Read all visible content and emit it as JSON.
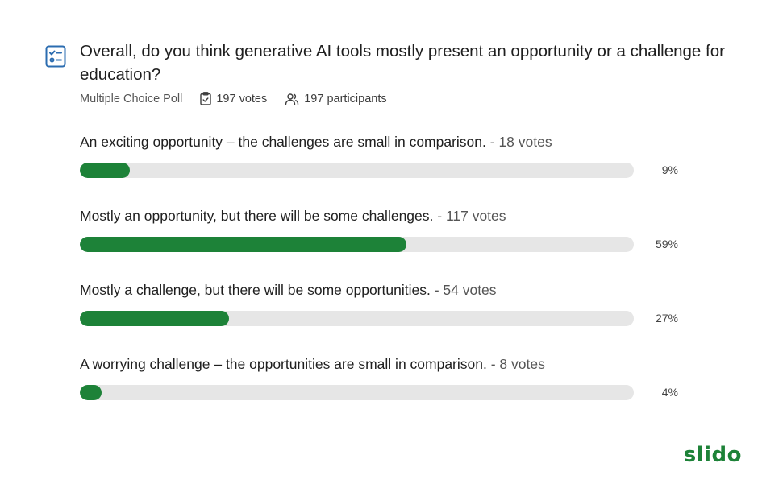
{
  "poll": {
    "question": "Overall, do you think generative AI tools mostly present an opportunity or a challenge for education?",
    "type_label": "Multiple Choice Poll",
    "votes_label": "197 votes",
    "participants_label": "197 participants"
  },
  "options": [
    {
      "label": "An exciting opportunity – the challenges are small in comparison.",
      "votes_text": " - 18 votes",
      "votes": 18,
      "percent_text": "9%",
      "percent": 9
    },
    {
      "label": "Mostly an opportunity, but there will be some challenges.",
      "votes_text": " - 117 votes",
      "votes": 117,
      "percent_text": "59%",
      "percent": 59
    },
    {
      "label": "Mostly a challenge, but there will be some opportunities.",
      "votes_text": " - 54 votes",
      "votes": 54,
      "percent_text": "27%",
      "percent": 27
    },
    {
      "label": "A worrying challenge – the opportunities are small in comparison.",
      "votes_text": " - 8 votes",
      "votes": 8,
      "percent_text": "4%",
      "percent": 4
    }
  ],
  "icons": {
    "poll": "poll-checklist-icon",
    "votes": "clipboard-check-icon",
    "participants": "users-icon"
  },
  "colors": {
    "accent": "#1d8238",
    "track": "#e6e6e6",
    "icon": "#2b6cb0"
  },
  "brand": {
    "name": "slido"
  }
}
